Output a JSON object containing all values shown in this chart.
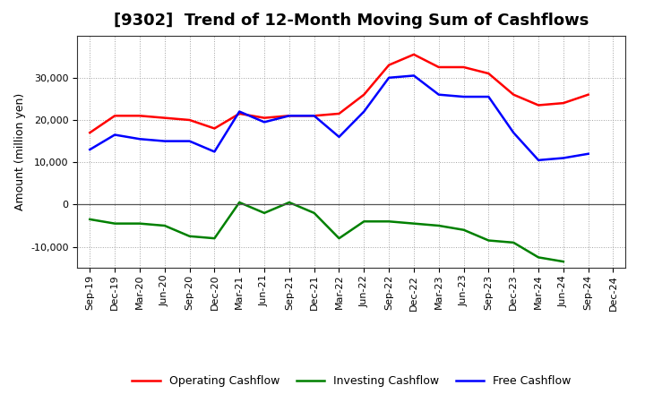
{
  "title": "[9302]  Trend of 12-Month Moving Sum of Cashflows",
  "ylabel": "Amount (million yen)",
  "x_labels": [
    "Sep-19",
    "Dec-19",
    "Mar-20",
    "Jun-20",
    "Sep-20",
    "Dec-20",
    "Mar-21",
    "Jun-21",
    "Sep-21",
    "Dec-21",
    "Mar-22",
    "Jun-22",
    "Sep-22",
    "Dec-22",
    "Mar-23",
    "Jun-23",
    "Sep-23",
    "Dec-23",
    "Mar-24",
    "Jun-24",
    "Sep-24",
    "Dec-24"
  ],
  "operating": [
    17000,
    21000,
    21000,
    20500,
    20000,
    18000,
    21500,
    20500,
    21000,
    21000,
    21500,
    26000,
    33000,
    35500,
    32500,
    32500,
    31000,
    26000,
    23500,
    24000,
    26000,
    null
  ],
  "investing": [
    -3500,
    -4500,
    -4500,
    -5000,
    -7500,
    -8000,
    500,
    -2000,
    500,
    -2000,
    -8000,
    -4000,
    -4000,
    -4500,
    -5000,
    -6000,
    -8500,
    -9000,
    -12500,
    -13500,
    null,
    null
  ],
  "free": [
    13000,
    16500,
    15500,
    15000,
    15000,
    12500,
    22000,
    19500,
    21000,
    21000,
    16000,
    22000,
    30000,
    30500,
    26000,
    25500,
    25500,
    17000,
    10500,
    11000,
    12000,
    null
  ],
  "operating_color": "#ff0000",
  "investing_color": "#008000",
  "free_color": "#0000ff",
  "ylim": [
    -15000,
    40000
  ],
  "yticks": [
    -10000,
    0,
    10000,
    20000,
    30000
  ],
  "background_color": "#ffffff",
  "grid_color": "#999999",
  "linewidth": 1.8,
  "title_fontsize": 13,
  "axis_fontsize": 8,
  "ylabel_fontsize": 9,
  "legend_fontsize": 9
}
